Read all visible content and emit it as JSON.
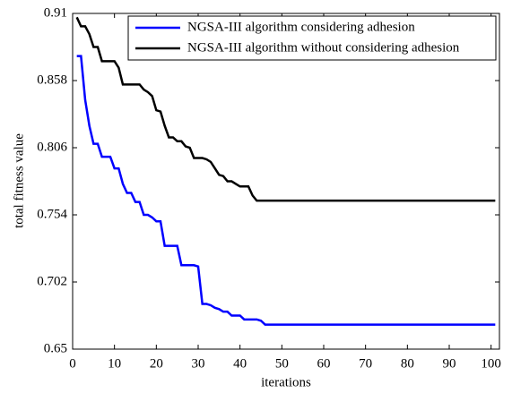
{
  "chart_data": {
    "type": "line",
    "xlabel": "iterations",
    "ylabel": "total fitness value",
    "x": [
      1,
      2,
      3,
      4,
      5,
      6,
      7,
      8,
      9,
      10,
      11,
      12,
      13,
      14,
      15,
      16,
      17,
      18,
      19,
      20,
      21,
      22,
      23,
      24,
      25,
      26,
      27,
      28,
      29,
      30,
      31,
      32,
      33,
      34,
      35,
      36,
      37,
      38,
      39,
      40,
      41,
      42,
      43,
      44,
      45,
      46,
      47,
      48,
      101
    ],
    "series": [
      {
        "name": "NGSA-III algorithm considering adhesion",
        "color": "#0000ff",
        "values": [
          0.877,
          0.877,
          0.843,
          0.823,
          0.809,
          0.809,
          0.799,
          0.799,
          0.799,
          0.79,
          0.79,
          0.778,
          0.771,
          0.771,
          0.764,
          0.764,
          0.754,
          0.754,
          0.752,
          0.749,
          0.749,
          0.73,
          0.73,
          0.73,
          0.73,
          0.715,
          0.715,
          0.715,
          0.715,
          0.714,
          0.685,
          0.685,
          0.684,
          0.682,
          0.681,
          0.679,
          0.679,
          0.676,
          0.676,
          0.676,
          0.673,
          0.673,
          0.673,
          0.673,
          0.672,
          0.669,
          0.669,
          0.669,
          0.669
        ]
      },
      {
        "name": "NGSA-III algorithm without considering adhesion",
        "color": "#000000",
        "values": [
          0.907,
          0.9,
          0.9,
          0.894,
          0.884,
          0.884,
          0.873,
          0.873,
          0.873,
          0.873,
          0.868,
          0.855,
          0.855,
          0.855,
          0.855,
          0.855,
          0.851,
          0.849,
          0.846,
          0.835,
          0.834,
          0.823,
          0.814,
          0.814,
          0.811,
          0.811,
          0.807,
          0.806,
          0.798,
          0.798,
          0.798,
          0.797,
          0.795,
          0.79,
          0.785,
          0.784,
          0.78,
          0.78,
          0.778,
          0.776,
          0.776,
          0.776,
          0.769,
          0.765,
          0.765,
          0.765,
          0.765,
          0.765,
          0.765
        ]
      }
    ],
    "xlim": [
      0,
      102
    ],
    "xticks": [
      0,
      10,
      20,
      30,
      40,
      50,
      60,
      70,
      80,
      90,
      100
    ],
    "ylim": [
      0.65,
      0.91
    ],
    "yticks": [
      0.65,
      0.702,
      0.754,
      0.806,
      0.858,
      0.91
    ],
    "legend": "upper right"
  }
}
